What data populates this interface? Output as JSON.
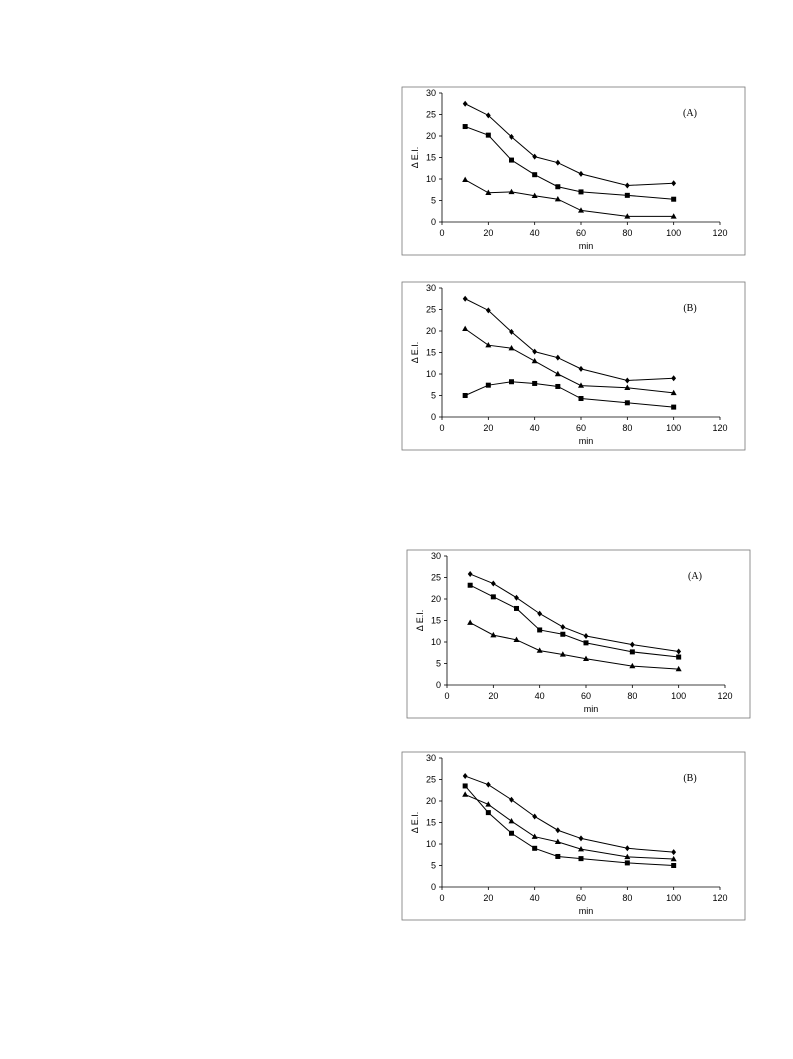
{
  "chart_data": [
    {
      "type": "line",
      "panel_label": "(A)",
      "xlabel": "min",
      "ylabel": "Δ E.I.",
      "xlim": [
        0,
        120
      ],
      "ylim": [
        0,
        30
      ],
      "xticks": [
        0,
        20,
        40,
        60,
        80,
        100,
        120
      ],
      "yticks": [
        0,
        5,
        10,
        15,
        20,
        25,
        30
      ],
      "x": [
        10,
        20,
        30,
        40,
        50,
        60,
        80,
        100
      ],
      "series": [
        {
          "marker": "diamond",
          "values": [
            27.5,
            24.8,
            19.8,
            15.2,
            13.8,
            11.2,
            8.5,
            9.0
          ]
        },
        {
          "marker": "square",
          "values": [
            22.2,
            20.2,
            14.4,
            11.0,
            8.2,
            7.0,
            6.2,
            5.3
          ]
        },
        {
          "marker": "triangle",
          "values": [
            9.8,
            6.8,
            7.0,
            6.1,
            5.3,
            2.7,
            1.3,
            1.3
          ]
        }
      ]
    },
    {
      "type": "line",
      "panel_label": "(B)",
      "xlabel": "min",
      "ylabel": "Δ E.I.",
      "xlim": [
        0,
        120
      ],
      "ylim": [
        0,
        30
      ],
      "xticks": [
        0,
        20,
        40,
        60,
        80,
        100,
        120
      ],
      "yticks": [
        0,
        5,
        10,
        15,
        20,
        25,
        30
      ],
      "x": [
        10,
        20,
        30,
        40,
        50,
        60,
        80,
        100
      ],
      "series": [
        {
          "marker": "diamond",
          "values": [
            27.5,
            24.8,
            19.8,
            15.2,
            13.8,
            11.2,
            8.5,
            9.0
          ]
        },
        {
          "marker": "triangle",
          "values": [
            20.5,
            16.7,
            16.0,
            13.0,
            10.0,
            7.3,
            6.8,
            5.6
          ]
        },
        {
          "marker": "square",
          "values": [
            5.0,
            7.4,
            8.2,
            7.8,
            7.1,
            4.3,
            3.3,
            2.3
          ]
        }
      ]
    },
    {
      "type": "line",
      "panel_label": "(A)",
      "xlabel": "min",
      "ylabel": "Δ E.I.",
      "xlim": [
        0,
        120
      ],
      "ylim": [
        0,
        30
      ],
      "xticks": [
        0,
        20,
        40,
        60,
        80,
        100,
        120
      ],
      "yticks": [
        0,
        5,
        10,
        15,
        20,
        25,
        30
      ],
      "x": [
        10,
        20,
        30,
        40,
        50,
        60,
        80,
        100
      ],
      "series": [
        {
          "marker": "diamond",
          "values": [
            25.8,
            23.6,
            20.3,
            16.6,
            13.5,
            11.4,
            9.4,
            7.8
          ]
        },
        {
          "marker": "square",
          "values": [
            23.2,
            20.5,
            17.8,
            12.8,
            11.8,
            9.8,
            7.7,
            6.5
          ]
        },
        {
          "marker": "triangle",
          "values": [
            14.5,
            11.6,
            10.5,
            8.0,
            7.1,
            6.1,
            4.4,
            3.7
          ]
        }
      ]
    },
    {
      "type": "line",
      "panel_label": "(B)",
      "xlabel": "min",
      "ylabel": "Δ E.I.",
      "xlim": [
        0,
        120
      ],
      "ylim": [
        0,
        30
      ],
      "xticks": [
        0,
        20,
        40,
        60,
        80,
        100,
        120
      ],
      "yticks": [
        0,
        5,
        10,
        15,
        20,
        25,
        30
      ],
      "x": [
        10,
        20,
        30,
        40,
        50,
        60,
        80,
        100
      ],
      "series": [
        {
          "marker": "diamond",
          "values": [
            25.8,
            23.8,
            20.3,
            16.4,
            13.2,
            11.3,
            9.0,
            8.1
          ]
        },
        {
          "marker": "triangle",
          "values": [
            21.5,
            19.2,
            15.3,
            11.7,
            10.5,
            8.8,
            7.0,
            6.5
          ]
        },
        {
          "marker": "square",
          "values": [
            23.5,
            17.3,
            12.5,
            9.0,
            7.1,
            6.6,
            5.6,
            5.0
          ]
        }
      ]
    }
  ]
}
